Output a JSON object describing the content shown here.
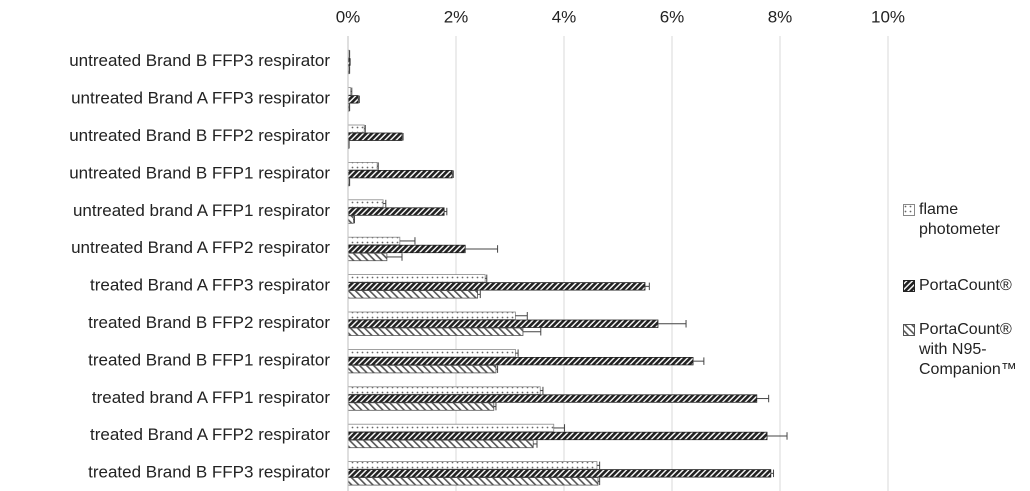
{
  "chart_data": {
    "type": "bar",
    "orientation": "horizontal",
    "categories": [
      "untreated Brand B FFP3 respirator",
      "untreated Brand A FFP3 respirator",
      "untreated Brand B FFP2 respirator",
      "untreated Brand B FFP1 respirator",
      "untreated brand A FFP1 respirator",
      "untreated Brand A FFP2 respirator",
      "treated Brand A FFP3 respirator",
      "treated Brand B FFP2 respirator",
      "treated Brand B FFP1 respirator",
      "treated brand A FFP1 respirator",
      "treated Brand A FFP2 respirator",
      "treated Brand B FFP3 respirator"
    ],
    "series": [
      {
        "name": "flame photometer",
        "color": "#888888",
        "values": [
          0.02,
          0.05,
          0.3,
          0.54,
          0.65,
          0.96,
          2.54,
          3.1,
          3.1,
          3.56,
          3.81,
          4.61
        ],
        "errors": [
          0.01,
          0.02,
          0.02,
          0.02,
          0.05,
          0.28,
          0.03,
          0.22,
          0.05,
          0.05,
          0.2,
          0.05
        ]
      },
      {
        "name": "PortaCount®",
        "color": "#222222",
        "values": [
          0.03,
          0.19,
          1.0,
          1.93,
          1.78,
          2.17,
          5.5,
          5.74,
          6.39,
          7.57,
          7.76,
          7.83
        ],
        "errors": [
          0.01,
          0.02,
          0.02,
          0.02,
          0.05,
          0.6,
          0.08,
          0.52,
          0.2,
          0.22,
          0.37,
          0.05
        ]
      },
      {
        "name": "PortaCount® with N95-Companion™",
        "color": "#555555",
        "values": [
          0.02,
          0.02,
          0.01,
          0.02,
          0.1,
          0.72,
          2.4,
          3.24,
          2.74,
          2.7,
          3.43,
          4.63
        ],
        "errors": [
          0.01,
          0.01,
          0.01,
          0.01,
          0.02,
          0.28,
          0.05,
          0.33,
          0.03,
          0.04,
          0.07,
          0.03
        ]
      }
    ],
    "xlim": [
      0,
      10
    ],
    "xticks": [
      {
        "value": 0,
        "label": "0%"
      },
      {
        "value": 2,
        "label": "2%"
      },
      {
        "value": 4,
        "label": "4%"
      },
      {
        "value": 6,
        "label": "6%"
      },
      {
        "value": 8,
        "label": "8%"
      },
      {
        "value": 10,
        "label": "10%"
      }
    ],
    "grid": true,
    "legend": "right"
  }
}
